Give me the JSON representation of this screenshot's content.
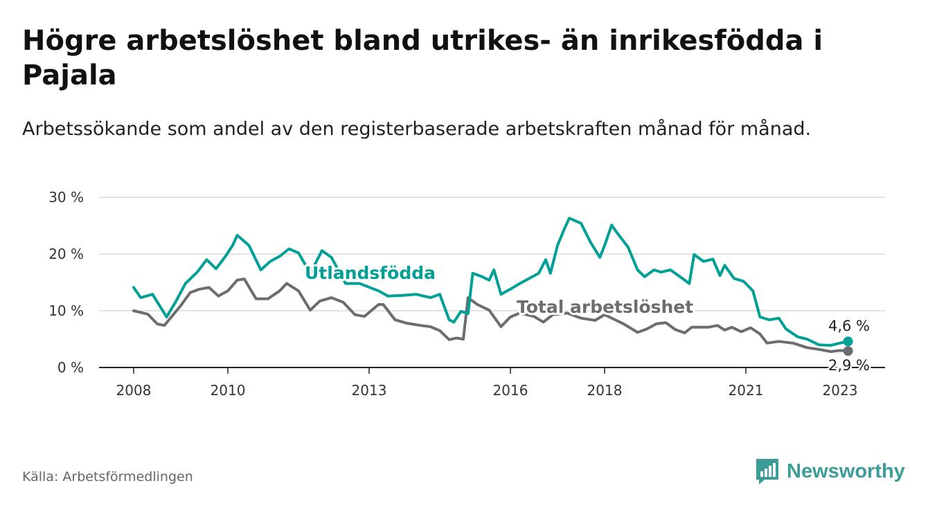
{
  "title": "Högre arbetslöshet bland utrikes- än inrikesfödda i Pajala",
  "subtitle": "Arbetssökande som andel av den registerbaserade arbetskraften månad för månad.",
  "source": "Källa: Arbetsförmedlingen",
  "logo": {
    "text": "Newsworthy",
    "color": "#3a9d97"
  },
  "chart_data": {
    "type": "line",
    "title": "Högre arbetslöshet bland utrikes- än inrikesfödda i Pajala",
    "xlabel": "",
    "ylabel": "",
    "xlim": [
      2007.8,
      2023.6
    ],
    "ylim": [
      0,
      30
    ],
    "grid": true,
    "x_ticks": [
      2008,
      2010,
      2013,
      2016,
      2018,
      2021,
      2023
    ],
    "x_tick_labels": [
      "2008",
      "2010",
      "2013",
      "2016",
      "2018",
      "2021",
      "2023"
    ],
    "y_ticks": [
      0,
      10,
      20,
      30
    ],
    "y_tick_labels": [
      "0 %",
      "10 %",
      "20 %",
      "30 %"
    ],
    "series": [
      {
        "name": "Utlandsfödda",
        "color": "#00a096",
        "end_label": "4,6 %",
        "points": [
          [
            2008.0,
            14.1
          ],
          [
            2008.15,
            12.3
          ],
          [
            2008.4,
            12.9
          ],
          [
            2008.7,
            8.9
          ],
          [
            2008.9,
            11.7
          ],
          [
            2009.1,
            14.8
          ],
          [
            2009.35,
            16.8
          ],
          [
            2009.55,
            19.0
          ],
          [
            2009.75,
            17.4
          ],
          [
            2009.95,
            19.6
          ],
          [
            2010.1,
            21.5
          ],
          [
            2010.2,
            23.3
          ],
          [
            2010.45,
            21.5
          ],
          [
            2010.7,
            17.2
          ],
          [
            2010.9,
            18.7
          ],
          [
            2011.1,
            19.6
          ],
          [
            2011.3,
            20.9
          ],
          [
            2011.5,
            20.2
          ],
          [
            2011.75,
            16.6
          ],
          [
            2012.0,
            20.6
          ],
          [
            2012.2,
            19.4
          ],
          [
            2012.5,
            14.8
          ],
          [
            2012.8,
            14.8
          ],
          [
            2013.2,
            13.5
          ],
          [
            2013.4,
            12.6
          ],
          [
            2013.7,
            12.7
          ],
          [
            2014.0,
            12.9
          ],
          [
            2014.3,
            12.3
          ],
          [
            2014.5,
            12.9
          ],
          [
            2014.7,
            8.4
          ],
          [
            2014.8,
            8.0
          ],
          [
            2014.95,
            9.9
          ],
          [
            2015.1,
            9.5
          ],
          [
            2015.2,
            16.6
          ],
          [
            2015.4,
            16.0
          ],
          [
            2015.55,
            15.4
          ],
          [
            2015.65,
            17.2
          ],
          [
            2015.8,
            12.9
          ],
          [
            2016.0,
            13.8
          ],
          [
            2016.2,
            14.8
          ],
          [
            2016.4,
            15.7
          ],
          [
            2016.6,
            16.6
          ],
          [
            2016.75,
            19.0
          ],
          [
            2016.85,
            16.6
          ],
          [
            2017.0,
            21.5
          ],
          [
            2017.15,
            24.5
          ],
          [
            2017.25,
            26.3
          ],
          [
            2017.5,
            25.4
          ],
          [
            2017.7,
            22.1
          ],
          [
            2017.9,
            19.4
          ],
          [
            2018.0,
            21.5
          ],
          [
            2018.15,
            25.1
          ],
          [
            2018.25,
            23.9
          ],
          [
            2018.5,
            21.2
          ],
          [
            2018.7,
            17.2
          ],
          [
            2018.85,
            16.0
          ],
          [
            2019.05,
            17.2
          ],
          [
            2019.2,
            16.8
          ],
          [
            2019.4,
            17.2
          ],
          [
            2019.6,
            16.0
          ],
          [
            2019.8,
            14.8
          ],
          [
            2019.9,
            19.9
          ],
          [
            2020.1,
            18.7
          ],
          [
            2020.3,
            19.1
          ],
          [
            2020.45,
            16.2
          ],
          [
            2020.55,
            18.0
          ],
          [
            2020.75,
            15.7
          ],
          [
            2020.95,
            15.2
          ],
          [
            2021.15,
            13.5
          ],
          [
            2021.3,
            8.9
          ],
          [
            2021.5,
            8.4
          ],
          [
            2021.7,
            8.7
          ],
          [
            2021.85,
            6.8
          ],
          [
            2022.1,
            5.4
          ],
          [
            2022.3,
            5.0
          ],
          [
            2022.55,
            4.0
          ],
          [
            2022.8,
            3.9
          ],
          [
            2023.0,
            4.3
          ],
          [
            2023.17,
            4.6
          ]
        ]
      },
      {
        "name": "Total arbetslöshet",
        "color": "#6d6c6f",
        "end_label": "2,9 %",
        "points": [
          [
            2008.0,
            10.0
          ],
          [
            2008.3,
            9.4
          ],
          [
            2008.5,
            7.7
          ],
          [
            2008.65,
            7.4
          ],
          [
            2008.8,
            8.9
          ],
          [
            2009.0,
            10.9
          ],
          [
            2009.2,
            13.2
          ],
          [
            2009.4,
            13.8
          ],
          [
            2009.6,
            14.1
          ],
          [
            2009.8,
            12.6
          ],
          [
            2010.0,
            13.5
          ],
          [
            2010.2,
            15.4
          ],
          [
            2010.35,
            15.6
          ],
          [
            2010.6,
            12.1
          ],
          [
            2010.85,
            12.1
          ],
          [
            2011.1,
            13.5
          ],
          [
            2011.25,
            14.8
          ],
          [
            2011.5,
            13.5
          ],
          [
            2011.75,
            10.1
          ],
          [
            2011.95,
            11.7
          ],
          [
            2012.2,
            12.3
          ],
          [
            2012.45,
            11.5
          ],
          [
            2012.7,
            9.3
          ],
          [
            2012.9,
            9.0
          ],
          [
            2013.2,
            11.1
          ],
          [
            2013.3,
            11.1
          ],
          [
            2013.55,
            8.4
          ],
          [
            2013.8,
            7.8
          ],
          [
            2014.1,
            7.4
          ],
          [
            2014.3,
            7.2
          ],
          [
            2014.5,
            6.5
          ],
          [
            2014.7,
            4.9
          ],
          [
            2014.85,
            5.2
          ],
          [
            2015.0,
            5.0
          ],
          [
            2015.1,
            12.3
          ],
          [
            2015.3,
            11.1
          ],
          [
            2015.55,
            10.1
          ],
          [
            2015.8,
            7.2
          ],
          [
            2016.0,
            8.9
          ],
          [
            2016.2,
            9.6
          ],
          [
            2016.5,
            9.0
          ],
          [
            2016.7,
            8.0
          ],
          [
            2016.9,
            9.3
          ],
          [
            2017.2,
            9.6
          ],
          [
            2017.5,
            8.7
          ],
          [
            2017.8,
            8.3
          ],
          [
            2018.0,
            9.3
          ],
          [
            2018.4,
            7.7
          ],
          [
            2018.7,
            6.2
          ],
          [
            2018.9,
            6.8
          ],
          [
            2019.1,
            7.7
          ],
          [
            2019.3,
            7.9
          ],
          [
            2019.5,
            6.7
          ],
          [
            2019.7,
            6.1
          ],
          [
            2019.85,
            7.1
          ],
          [
            2020.2,
            7.1
          ],
          [
            2020.4,
            7.4
          ],
          [
            2020.55,
            6.6
          ],
          [
            2020.7,
            7.1
          ],
          [
            2020.9,
            6.3
          ],
          [
            2021.1,
            7.0
          ],
          [
            2021.3,
            5.9
          ],
          [
            2021.45,
            4.3
          ],
          [
            2021.7,
            4.6
          ],
          [
            2022.0,
            4.3
          ],
          [
            2022.3,
            3.5
          ],
          [
            2022.55,
            3.2
          ],
          [
            2022.8,
            2.8
          ],
          [
            2023.0,
            3.0
          ],
          [
            2023.17,
            2.9
          ]
        ]
      }
    ]
  }
}
